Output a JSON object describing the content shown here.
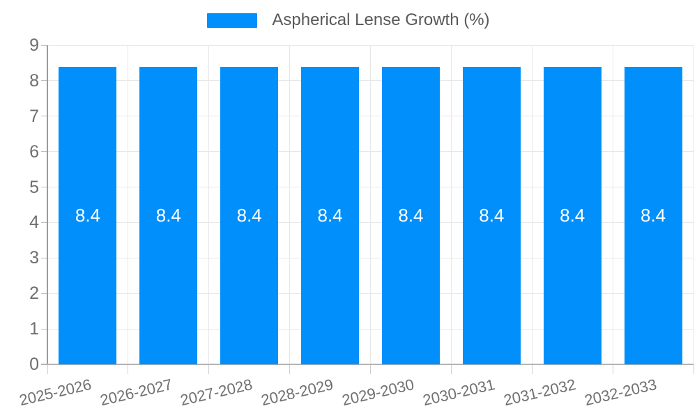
{
  "legend": {
    "swatch_color": "#008FFB",
    "label": "Aspherical Lense Growth (%)"
  },
  "colors": {
    "bar": "#008FFB",
    "value_label": "#ffffff"
  },
  "chart_data": {
    "type": "bar",
    "title": "Aspherical Lense Growth (%)",
    "categories": [
      "2025-2026",
      "2026-2027",
      "2027-2028",
      "2028-2029",
      "2029-2030",
      "2030-2031",
      "2031-2032",
      "2032-2033"
    ],
    "series": [
      {
        "name": "Aspherical Lense Growth (%)",
        "values": [
          8.4,
          8.4,
          8.4,
          8.4,
          8.4,
          8.4,
          8.4,
          8.4
        ],
        "color": "#008FFB"
      }
    ],
    "value_labels": [
      "8.4",
      "8.4",
      "8.4",
      "8.4",
      "8.4",
      "8.4",
      "8.4",
      "8.4"
    ],
    "xlabel": "",
    "ylabel": "",
    "ylim": [
      0,
      9
    ],
    "yticks": [
      0,
      1,
      2,
      3,
      4,
      5,
      6,
      7,
      8,
      9
    ],
    "grid": "on",
    "legend_position": "top-center"
  }
}
